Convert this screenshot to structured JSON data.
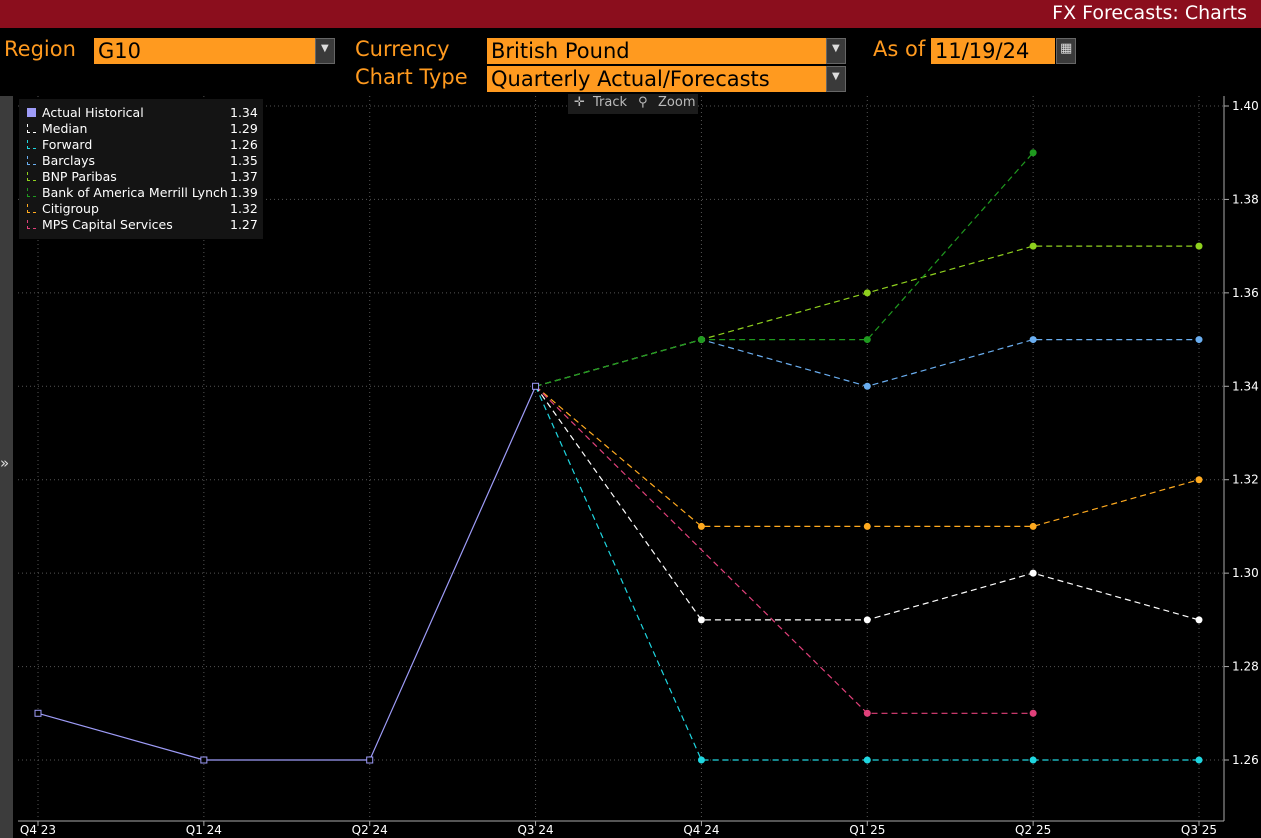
{
  "window": {
    "title": "FX Forecasts: Charts"
  },
  "controls": {
    "region_label": "Region",
    "region_value": "G10",
    "currency_label": "Currency",
    "currency_value": "British Pound",
    "as_of_label": "As of",
    "as_of_value": "11/19/24",
    "chart_type_label": "Chart Type",
    "chart_type_value": "Quarterly Actual/Forecasts"
  },
  "toolbar": {
    "track_label": "Track",
    "zoom_label": "Zoom"
  },
  "icons": [
    "dropdown-arrow-icon",
    "calendar-icon",
    "expand-panel-icon",
    "crosshair-icon",
    "magnifier-icon"
  ],
  "chart_data": {
    "type": "line",
    "categories": [
      "Q4 23",
      "Q1 24",
      "Q2 24",
      "Q3 24",
      "Q4 24",
      "Q1 25",
      "Q2 25",
      "Q3 25"
    ],
    "ylim": [
      1.25,
      1.4
    ],
    "yticks": [
      "1.26",
      "1.28",
      "1.30",
      "1.32",
      "1.34",
      "1.36",
      "1.38",
      "1.40"
    ],
    "grid": true,
    "legend_position": "top-left",
    "series": [
      {
        "name": "Actual Historical",
        "last": "1.34",
        "color": "#9e9cf8",
        "style": "solid",
        "marker": "square",
        "values": [
          1.27,
          1.26,
          1.26,
          1.34,
          null,
          null,
          null,
          null
        ]
      },
      {
        "name": "Median",
        "last": "1.29",
        "color": "#ffffff",
        "style": "dashed",
        "marker": "circle",
        "values": [
          null,
          null,
          null,
          1.34,
          1.29,
          1.29,
          1.3,
          1.29
        ]
      },
      {
        "name": "Forward",
        "last": "1.26",
        "color": "#1fd6e0",
        "style": "dashed",
        "marker": "circle",
        "values": [
          null,
          null,
          null,
          1.34,
          1.26,
          1.26,
          1.26,
          1.26
        ]
      },
      {
        "name": "Barclays",
        "last": "1.35",
        "color": "#6aaef0",
        "style": "dashed",
        "marker": "circle",
        "values": [
          null,
          null,
          null,
          1.34,
          1.35,
          1.34,
          1.35,
          1.35
        ]
      },
      {
        "name": "BNP Paribas",
        "last": "1.37",
        "color": "#8fd11e",
        "style": "dashed",
        "marker": "circle",
        "values": [
          null,
          null,
          null,
          1.34,
          1.35,
          1.36,
          1.37,
          1.37
        ]
      },
      {
        "name": "Bank of America Merrill Lynch",
        "last": "1.39",
        "color": "#1f9a1f",
        "style": "dashed",
        "marker": "circle",
        "values": [
          null,
          null,
          null,
          1.34,
          1.35,
          1.35,
          1.39,
          null
        ]
      },
      {
        "name": "Citigroup",
        "last": "1.32",
        "color": "#ffaa1f",
        "style": "dashed",
        "marker": "circle",
        "values": [
          null,
          null,
          null,
          1.34,
          1.31,
          1.31,
          1.31,
          1.32
        ]
      },
      {
        "name": "MPS Capital Services",
        "last": "1.27",
        "color": "#e0407a",
        "style": "dashed",
        "marker": "circle",
        "values": [
          null,
          null,
          null,
          1.34,
          null,
          1.27,
          1.27,
          null
        ]
      }
    ]
  }
}
